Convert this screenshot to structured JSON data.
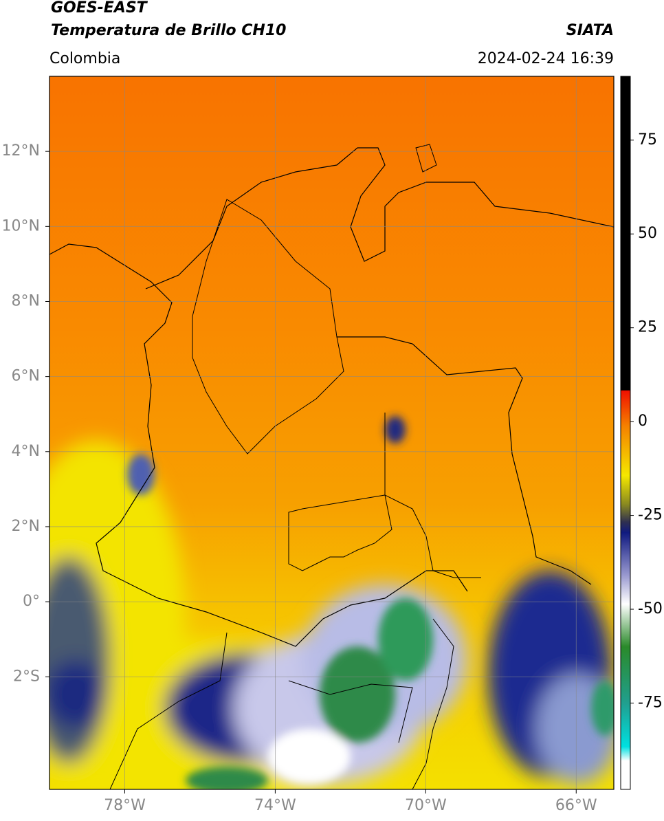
{
  "header": {
    "title": "GOES-EAST",
    "subtitle": "Temperatura de Brillo CH10",
    "source": "SIATA",
    "region": "Colombia",
    "datetime": "2024-02-24 16:39"
  },
  "map": {
    "lon_range": [
      -80,
      -65
    ],
    "lat_range": [
      -5,
      14
    ],
    "grid": true,
    "lon_ticks": [
      {
        "value": -78,
        "label": "78°W"
      },
      {
        "value": -74,
        "label": "74°W"
      },
      {
        "value": -70,
        "label": "70°W"
      },
      {
        "value": -66,
        "label": "66°W"
      }
    ],
    "lat_ticks": [
      {
        "value": 12,
        "label": "12°N"
      },
      {
        "value": 10,
        "label": "10°N"
      },
      {
        "value": 8,
        "label": "8°N"
      },
      {
        "value": 6,
        "label": "6°N"
      },
      {
        "value": 4,
        "label": "4°N"
      },
      {
        "value": 2,
        "label": "2°N"
      },
      {
        "value": 0,
        "label": "0°"
      },
      {
        "value": -2,
        "label": "2°S"
      }
    ]
  },
  "colorbar": {
    "range": [
      -98,
      92
    ],
    "ticks": [
      75,
      50,
      25,
      0,
      -25,
      -50,
      -75
    ]
  }
}
